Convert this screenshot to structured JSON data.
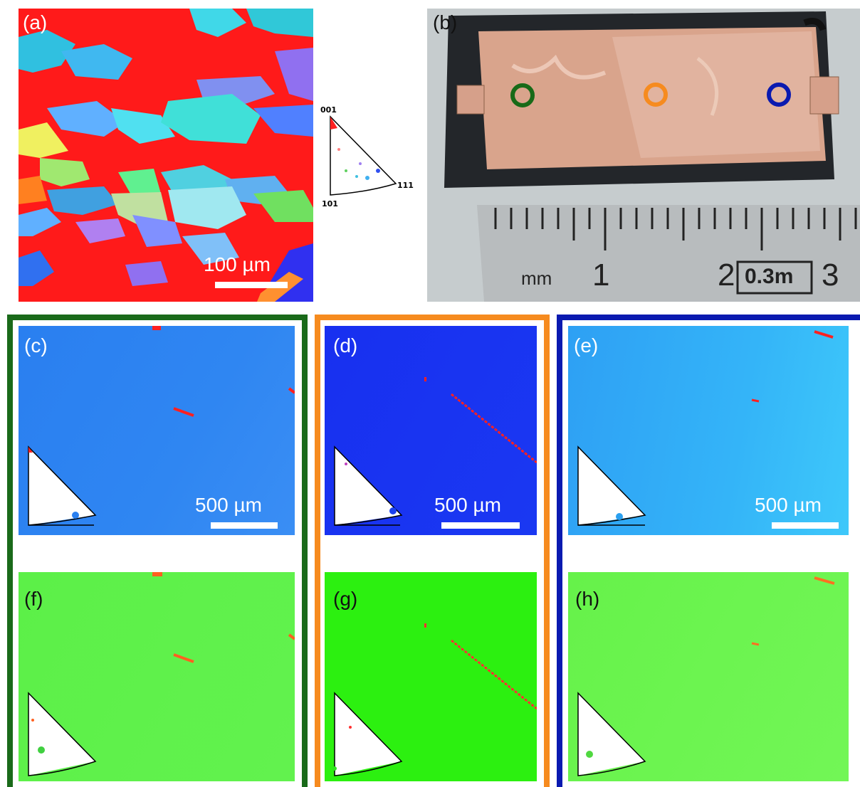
{
  "panels": {
    "a": {
      "label": "(a)",
      "scale": "100 µm"
    },
    "b": {
      "label": "(b)",
      "ruler": {
        "unit": "mm",
        "n1": "1",
        "n2": "2",
        "box": "0.3m",
        "n3": "3"
      }
    },
    "c": {
      "label": "(c)",
      "scale": "500 µm"
    },
    "d": {
      "label": "(d)",
      "scale": "500 µm"
    },
    "e": {
      "label": "(e)",
      "scale": "500 µm"
    },
    "f": {
      "label": "(f)"
    },
    "g": {
      "label": "(g)"
    },
    "h": {
      "label": "(h)"
    }
  },
  "ipf_legend": {
    "top": "001",
    "left": "101",
    "right": "111"
  },
  "colors": {
    "green_frame": "#1a6a1a",
    "orange_frame": "#f68b1f",
    "blue_frame": "#0a1ab0",
    "ebsd_red": "#ff1010",
    "c_bg": "#2a7ff0",
    "d_bg": "#1830f0",
    "e_bg": "#30b0f8",
    "f_bg": "#5cf048",
    "g_bg": "#2cf010",
    "h_bg": "#6cf450"
  }
}
